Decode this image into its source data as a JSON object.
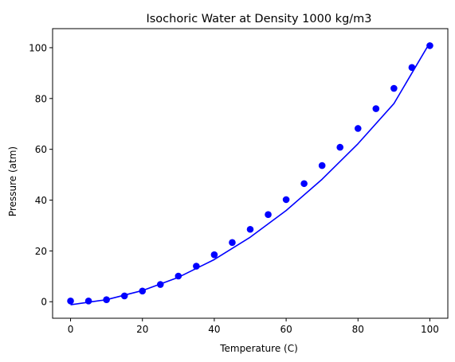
{
  "chart_data": {
    "type": "scatter",
    "title": "Isochoric Water at Density 1000 kg/m3",
    "xlabel": "Temperature (C)",
    "ylabel": "Pressure (atm)",
    "xlim": [
      -5,
      105
    ],
    "ylim": [
      -6.5,
      107.5
    ],
    "xticks": [
      0,
      20,
      40,
      60,
      80,
      100
    ],
    "yticks": [
      0,
      20,
      40,
      60,
      80,
      100
    ],
    "grid": false,
    "colors": {
      "series": "#0000ff",
      "axis": "#000000"
    },
    "series": [
      {
        "kind": "points",
        "x": [
          0,
          5,
          10,
          15,
          20,
          25,
          30,
          35,
          40,
          45,
          50,
          55,
          60,
          65,
          70,
          75,
          80,
          85,
          90,
          95,
          100
        ],
        "y": [
          0.3,
          0.3,
          0.8,
          2.3,
          4.2,
          6.8,
          10.1,
          14.0,
          18.5,
          23.3,
          28.5,
          34.3,
          40.2,
          46.5,
          53.6,
          60.8,
          68.2,
          76.0,
          84.0,
          92.2,
          100.8
        ]
      },
      {
        "kind": "fit-line",
        "x": [
          0,
          10,
          20,
          30,
          40,
          50,
          60,
          70,
          80,
          90,
          100
        ],
        "y": [
          -1.2,
          0.8,
          4.4,
          9.6,
          16.6,
          25.4,
          35.9,
          48.2,
          62.2,
          78.0,
          102.0
        ]
      }
    ]
  }
}
